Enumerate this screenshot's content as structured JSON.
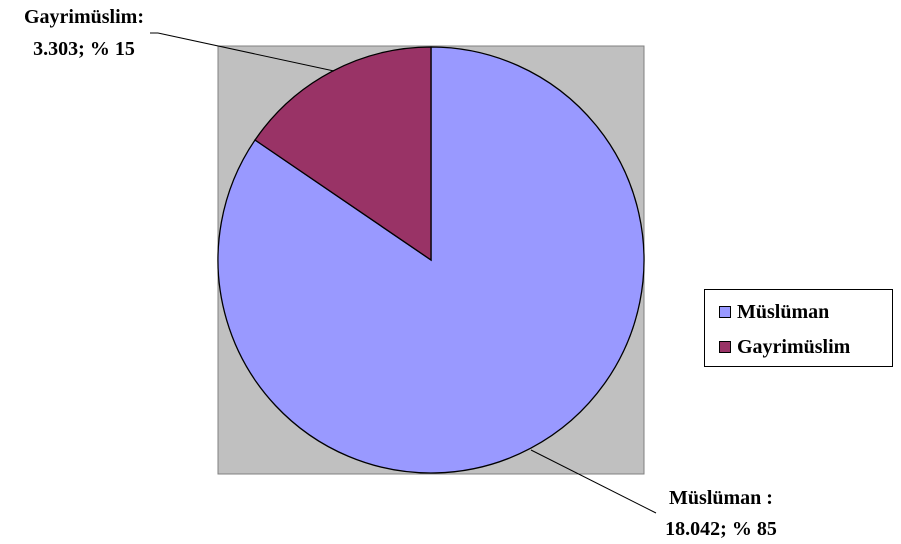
{
  "chart_data": {
    "type": "pie",
    "slices": [
      {
        "name": "Müslüman",
        "value": 18042,
        "percent": 85,
        "color": "#9999ff",
        "label_lines": [
          "Müslüman :",
          "18.042; % 85"
        ]
      },
      {
        "name": "Gayrimüslim",
        "value": 3303,
        "percent": 15,
        "color": "#993366",
        "label_lines": [
          "Gayrimüslim:",
          "3.303; % 15"
        ]
      }
    ],
    "plot_background": "#c0c0c0",
    "legend": {
      "position": "right",
      "items": [
        "Müslüman",
        "Gayrimüslim"
      ]
    }
  }
}
